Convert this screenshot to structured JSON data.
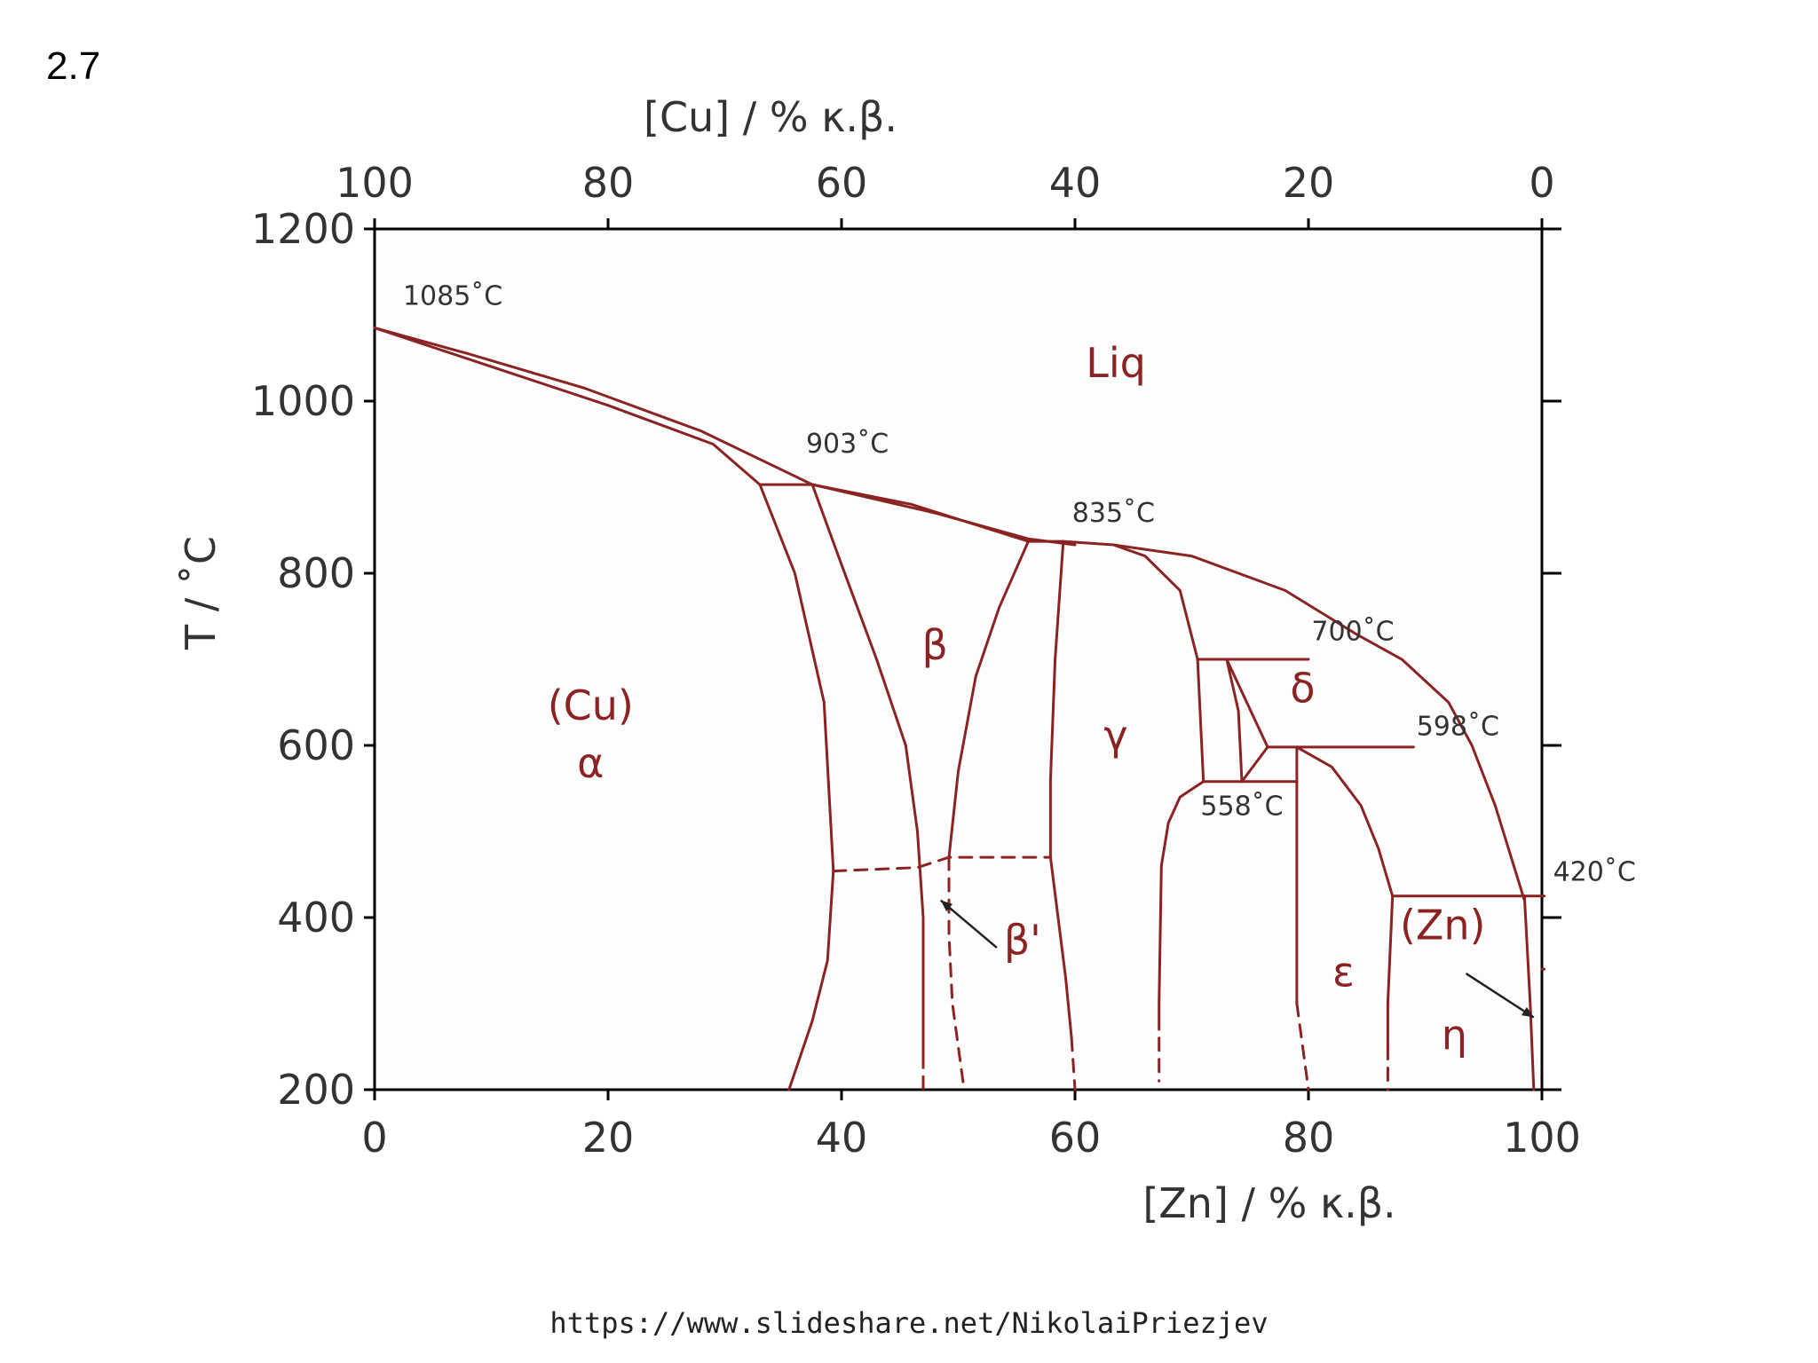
{
  "slide": {
    "number": "2.7",
    "source": "https://www.slideshare.net/NikolaiPriezjev"
  },
  "colors": {
    "phase_line": "#8b2323",
    "axis": "#000000",
    "label": "#8b2323",
    "text": "#333333"
  },
  "chart_data": {
    "type": "phase-diagram",
    "title": "",
    "xlabel": "[Zn] / % κ.β.",
    "x2label": "[Cu] / % κ.β.",
    "ylabel": "T / ˚C",
    "xlim": [
      0,
      100
    ],
    "ylim": [
      200,
      1200
    ],
    "x_ticks": [
      0,
      20,
      40,
      60,
      80,
      100
    ],
    "x2_ticks": [
      100,
      80,
      60,
      40,
      20,
      0
    ],
    "y_ticks": [
      200,
      400,
      600,
      800,
      1000,
      1200
    ],
    "phase_labels": [
      {
        "text": "Liq",
        "x": 63.5,
        "y": 1028
      },
      {
        "text": "(Cu)",
        "x": 18.5,
        "y": 630
      },
      {
        "text": "α",
        "x": 18.5,
        "y": 563
      },
      {
        "text": "β",
        "x": 48,
        "y": 700
      },
      {
        "text": "β'",
        "x": 55.5,
        "y": 357
      },
      {
        "text": "γ",
        "x": 63.5,
        "y": 595
      },
      {
        "text": "δ",
        "x": 79.5,
        "y": 650
      },
      {
        "text": "ε",
        "x": 83,
        "y": 320
      },
      {
        "text": "(Zn)",
        "x": 91.5,
        "y": 375
      },
      {
        "text": "η",
        "x": 92.5,
        "y": 247
      }
    ],
    "temperature_annotations": [
      {
        "text": "1085˚C",
        "x": 6.7,
        "y": 1112
      },
      {
        "text": "903˚C",
        "x": 40.5,
        "y": 940
      },
      {
        "text": "835˚C",
        "x": 63.3,
        "y": 860
      },
      {
        "text": "700˚C",
        "x": 83.8,
        "y": 722
      },
      {
        "text": "598˚C",
        "x": 92.8,
        "y": 612
      },
      {
        "text": "558˚C",
        "x": 74.3,
        "y": 519
      },
      {
        "text": "420˚C",
        "x": 104.5,
        "y": 443
      }
    ],
    "boundaries": [
      {
        "style": "solid",
        "points": [
          [
            0,
            1085
          ],
          [
            8,
            1055
          ],
          [
            18,
            1015
          ],
          [
            28,
            965
          ],
          [
            37.5,
            903
          ]
        ]
      },
      {
        "style": "solid",
        "points": [
          [
            0,
            1085
          ],
          [
            10,
            1040
          ],
          [
            20,
            995
          ],
          [
            29,
            950
          ],
          [
            33,
            903
          ]
        ]
      },
      {
        "style": "solid",
        "points": [
          [
            33,
            903
          ],
          [
            37.5,
            903
          ]
        ]
      },
      {
        "style": "solid",
        "points": [
          [
            37.5,
            903
          ],
          [
            48,
            870
          ],
          [
            56,
            840
          ],
          [
            60,
            833
          ]
        ]
      },
      {
        "style": "solid",
        "points": [
          [
            37.5,
            903
          ],
          [
            46,
            880
          ],
          [
            56,
            837
          ]
        ]
      },
      {
        "style": "solid",
        "points": [
          [
            33,
            903
          ],
          [
            36,
            800
          ],
          [
            38.5,
            650
          ],
          [
            39.3,
            454
          ],
          [
            38.8,
            350
          ],
          [
            37.5,
            280
          ],
          [
            35.5,
            200
          ]
        ]
      },
      {
        "style": "solid",
        "points": [
          [
            37.5,
            903
          ],
          [
            40,
            810
          ],
          [
            43,
            700
          ],
          [
            45.5,
            600
          ],
          [
            46.5,
            500
          ],
          [
            47,
            400
          ],
          [
            47,
            240
          ]
        ]
      },
      {
        "style": "dashed",
        "points": [
          [
            47,
            240
          ],
          [
            47,
            200
          ]
        ]
      },
      {
        "style": "solid",
        "points": [
          [
            56,
            837
          ],
          [
            53.5,
            760
          ],
          [
            51.5,
            680
          ],
          [
            50,
            570
          ],
          [
            49.2,
            470
          ]
        ]
      },
      {
        "style": "dashed",
        "points": [
          [
            49.2,
            470
          ],
          [
            49.2,
            380
          ],
          [
            49.5,
            300
          ],
          [
            50.5,
            200
          ]
        ]
      },
      {
        "style": "solid",
        "points": [
          [
            56,
            837
          ],
          [
            59,
            837
          ]
        ]
      },
      {
        "style": "solid",
        "points": [
          [
            59,
            837
          ],
          [
            58.3,
            700
          ],
          [
            57.9,
            560
          ],
          [
            57.9,
            470
          ]
        ]
      },
      {
        "style": "solid",
        "points": [
          [
            57.9,
            470
          ],
          [
            59.2,
            330
          ],
          [
            59.7,
            260
          ]
        ]
      },
      {
        "style": "dashed",
        "points": [
          [
            59.7,
            260
          ],
          [
            60,
            200
          ]
        ]
      },
      {
        "style": "dashed",
        "points": [
          [
            39.3,
            454
          ],
          [
            46.5,
            458
          ],
          [
            49.2,
            470
          ],
          [
            57.9,
            470
          ]
        ]
      },
      {
        "style": "solid",
        "points": [
          [
            59,
            837
          ],
          [
            63.3,
            833
          ],
          [
            66,
            820
          ],
          [
            69,
            780
          ],
          [
            70.5,
            700
          ]
        ]
      },
      {
        "style": "solid",
        "points": [
          [
            63.3,
            833
          ],
          [
            70,
            820
          ],
          [
            78,
            780
          ],
          [
            84,
            730
          ],
          [
            88,
            700
          ],
          [
            92,
            650
          ],
          [
            94,
            600
          ],
          [
            96,
            530
          ],
          [
            98.5,
            420
          ]
        ]
      },
      {
        "style": "solid",
        "points": [
          [
            70.5,
            700
          ],
          [
            80,
            700
          ]
        ]
      },
      {
        "style": "solid",
        "points": [
          [
            70.5,
            700
          ],
          [
            71,
            558
          ]
        ]
      },
      {
        "style": "solid",
        "points": [
          [
            73,
            700
          ],
          [
            74,
            640
          ],
          [
            74.3,
            558
          ]
        ]
      },
      {
        "style": "solid",
        "points": [
          [
            73,
            700
          ],
          [
            76.5,
            598
          ]
        ]
      },
      {
        "style": "solid",
        "points": [
          [
            76.5,
            598
          ],
          [
            89,
            598
          ]
        ]
      },
      {
        "style": "solid",
        "points": [
          [
            71,
            558
          ],
          [
            79,
            558
          ]
        ]
      },
      {
        "style": "solid",
        "points": [
          [
            76.5,
            598
          ],
          [
            74.3,
            558
          ]
        ]
      },
      {
        "style": "solid",
        "points": [
          [
            71,
            558
          ],
          [
            69,
            540
          ],
          [
            68,
            510
          ],
          [
            67.4,
            460
          ],
          [
            67.2,
            300
          ],
          [
            67.2,
            270
          ]
        ]
      },
      {
        "style": "dashed",
        "points": [
          [
            67.2,
            260
          ],
          [
            67.2,
            210
          ]
        ]
      },
      {
        "style": "solid",
        "points": [
          [
            79,
            598
          ],
          [
            79,
            300
          ]
        ]
      },
      {
        "style": "dashed",
        "points": [
          [
            79,
            300
          ],
          [
            80,
            200
          ]
        ]
      },
      {
        "style": "solid",
        "points": [
          [
            79,
            598
          ],
          [
            82,
            575
          ],
          [
            84.5,
            530
          ],
          [
            86,
            480
          ],
          [
            87.2,
            425
          ]
        ]
      },
      {
        "style": "solid",
        "points": [
          [
            87.2,
            425
          ],
          [
            98.5,
            425
          ]
        ]
      },
      {
        "style": "solid",
        "points": [
          [
            98.5,
            425
          ],
          [
            100.2,
            425
          ]
        ]
      },
      {
        "style": "solid",
        "points": [
          [
            87.2,
            425
          ],
          [
            86.8,
            300
          ],
          [
            86.8,
            250
          ]
        ]
      },
      {
        "style": "dashed",
        "points": [
          [
            86.8,
            250
          ],
          [
            86.8,
            200
          ]
        ]
      },
      {
        "style": "solid",
        "points": [
          [
            98.5,
            425
          ],
          [
            99,
            300
          ],
          [
            99.3,
            200
          ]
        ]
      },
      {
        "style": "solid",
        "points": [
          [
            100,
            340
          ],
          [
            100.2,
            340
          ]
        ]
      }
    ],
    "arrows": [
      {
        "from": [
          53.3,
          365
        ],
        "to": [
          48.5,
          420
        ]
      },
      {
        "from": [
          93.5,
          335
        ],
        "to": [
          99.3,
          284
        ]
      }
    ]
  }
}
